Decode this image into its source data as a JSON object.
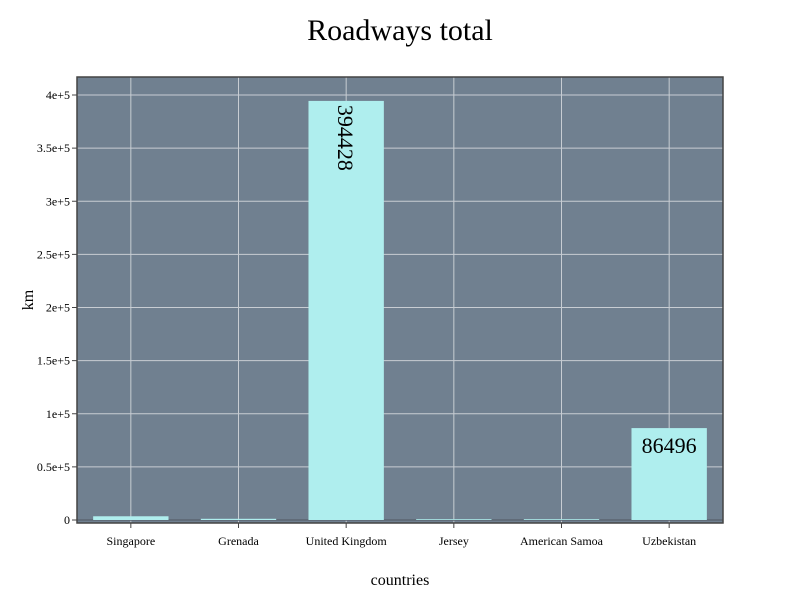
{
  "chart_data": {
    "type": "bar",
    "title": "Roadways total",
    "xlabel": "countries",
    "ylabel": "km",
    "categories": [
      "Singapore",
      "Grenada",
      "United Kingdom",
      "Jersey",
      "American Samoa",
      "Uzbekistan"
    ],
    "values": [
      3500,
      1130,
      394428,
      577,
      241,
      86496
    ],
    "data_labels": [
      "",
      "",
      "394428",
      "",
      "",
      "86496"
    ],
    "ylim": [
      -2000,
      400000
    ],
    "yticks": [
      0,
      50000,
      100000,
      150000,
      200000,
      250000,
      300000,
      350000,
      400000
    ],
    "ytick_labels": [
      "0",
      "0.5e+5",
      "1e+5",
      "1.5e+5",
      "2e+5",
      "2.5e+5",
      "3e+5",
      "3.5e+5",
      "4e+5"
    ],
    "grid": true,
    "legend": "none",
    "colors": {
      "plot_background": "#708090",
      "bar_fill": "#afeeee",
      "grid": "#c8cdd3",
      "frame": "#444444",
      "text": "#000000"
    }
  }
}
